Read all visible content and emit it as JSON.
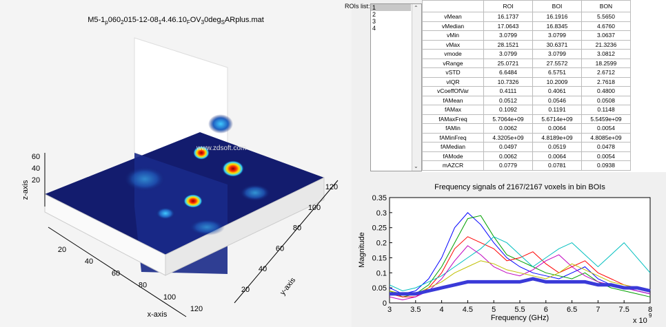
{
  "figure_3d": {
    "title_parts": [
      {
        "text": "M5-1"
      },
      {
        "text": "p",
        "sub": true
      },
      {
        "text": "060"
      },
      {
        "text": "2",
        "sub": true
      },
      {
        "text": "015-12-08"
      },
      {
        "text": "1",
        "sub": true
      },
      {
        "text": "4.46.10"
      },
      {
        "text": "F",
        "sub": true
      },
      {
        "text": "OV"
      },
      {
        "text": "3",
        "sub": true
      },
      {
        "text": "0deg"
      },
      {
        "text": "S",
        "sub": true
      },
      {
        "text": "ARplus.mat"
      }
    ],
    "xlabel": "x-axis",
    "ylabel": "y-axis",
    "zlabel": "z-axis",
    "xticks": [
      20,
      40,
      60,
      80,
      100,
      120
    ],
    "yticks": [
      20,
      40,
      60,
      80,
      100,
      120
    ],
    "zticks": [
      20,
      40,
      60
    ],
    "watermark": "www.zdsoft.com"
  },
  "rois_list": {
    "label": "ROIs list:",
    "items": [
      "1",
      "2",
      "3",
      "4"
    ]
  },
  "table": {
    "columns": [
      "ROI",
      "BOI",
      "BON"
    ],
    "rows": [
      [
        "vMean",
        "16.1737",
        "16.1916",
        "5.5650"
      ],
      [
        "vMedian",
        "17.0643",
        "16.8345",
        "4.6760"
      ],
      [
        "vMin",
        "3.0799",
        "3.0799",
        "3.0637"
      ],
      [
        "vMax",
        "28.1521",
        "30.6371",
        "21.3236"
      ],
      [
        "vmode",
        "3.0799",
        "3.0799",
        "3.0812"
      ],
      [
        "vRange",
        "25.0721",
        "27.5572",
        "18.2599"
      ],
      [
        "vSTD",
        "6.6484",
        "6.5751",
        "2.6712"
      ],
      [
        "vIQR",
        "10.7326",
        "10.2009",
        "2.7618"
      ],
      [
        "vCoeffOfVar",
        "0.4111",
        "0.4061",
        "0.4800"
      ],
      [
        "fAMean",
        "0.0512",
        "0.0546",
        "0.0508"
      ],
      [
        "fAMax",
        "0.1092",
        "0.1191",
        "0.1148"
      ],
      [
        "fAMaxFreq",
        "5.7064e+09",
        "5.6714e+09",
        "5.5459e+09"
      ],
      [
        "fAMin",
        "0.0062",
        "0.0064",
        "0.0054"
      ],
      [
        "fAMinFreq",
        "4.3205e+09",
        "4.8189e+09",
        "4.8085e+09"
      ],
      [
        "fAMedian",
        "0.0497",
        "0.0519",
        "0.0478"
      ],
      [
        "fAMode",
        "0.0062",
        "0.0064",
        "0.0054"
      ],
      [
        "mAZCR",
        "0.0779",
        "0.0781",
        "0.0938"
      ]
    ]
  },
  "chart_data": {
    "type": "line",
    "title": "Frequency signals of 2167/2167 voxels in bin BOIs",
    "xlabel": "Frequency (GHz)",
    "ylabel": "Magnitude",
    "x_multiplier": {
      "base": "x 10",
      "exponent": "9"
    },
    "x": [
      3,
      3.25,
      3.5,
      3.75,
      4,
      4.25,
      4.5,
      4.75,
      5,
      5.25,
      5.5,
      5.75,
      6,
      6.25,
      6.5,
      6.75,
      7,
      7.25,
      7.5,
      7.75,
      8
    ],
    "series": [
      {
        "color": "#0000ff",
        "width": 1,
        "values": [
          0.05,
          0.03,
          0.04,
          0.08,
          0.15,
          0.25,
          0.3,
          0.26,
          0.2,
          0.15,
          0.12,
          0.1,
          0.09,
          0.08,
          0.1,
          0.12,
          0.08,
          0.06,
          0.05,
          0.04,
          0.03
        ]
      },
      {
        "color": "#00a000",
        "width": 1,
        "values": [
          0.04,
          0.02,
          0.03,
          0.06,
          0.12,
          0.2,
          0.28,
          0.29,
          0.22,
          0.16,
          0.14,
          0.12,
          0.1,
          0.09,
          0.08,
          0.1,
          0.07,
          0.05,
          0.04,
          0.03,
          0.02
        ]
      },
      {
        "color": "#ff0000",
        "width": 1,
        "values": [
          0.03,
          0.02,
          0.02,
          0.05,
          0.1,
          0.18,
          0.22,
          0.2,
          0.18,
          0.14,
          0.15,
          0.17,
          0.13,
          0.1,
          0.12,
          0.14,
          0.1,
          0.08,
          0.06,
          0.05,
          0.04
        ]
      },
      {
        "color": "#00bfbf",
        "width": 1,
        "values": [
          0.06,
          0.04,
          0.05,
          0.07,
          0.09,
          0.12,
          0.15,
          0.18,
          0.22,
          0.2,
          0.16,
          0.12,
          0.15,
          0.18,
          0.2,
          0.16,
          0.12,
          0.16,
          0.2,
          0.15,
          0.1
        ]
      },
      {
        "color": "#bf00bf",
        "width": 1,
        "values": [
          0.02,
          0.01,
          0.02,
          0.04,
          0.08,
          0.14,
          0.19,
          0.16,
          0.12,
          0.1,
          0.09,
          0.11,
          0.14,
          0.16,
          0.12,
          0.09,
          0.07,
          0.06,
          0.05,
          0.04,
          0.03
        ]
      },
      {
        "color": "#bfbf00",
        "width": 1,
        "values": [
          0.04,
          0.03,
          0.03,
          0.05,
          0.07,
          0.1,
          0.12,
          0.14,
          0.13,
          0.11,
          0.1,
          0.09,
          0.08,
          0.1,
          0.13,
          0.11,
          0.09,
          0.07,
          0.06,
          0.05,
          0.04
        ]
      },
      {
        "color": "#3a3ad8",
        "width": 5,
        "values": [
          0.03,
          0.03,
          0.03,
          0.04,
          0.05,
          0.06,
          0.07,
          0.07,
          0.07,
          0.07,
          0.07,
          0.08,
          0.07,
          0.07,
          0.07,
          0.07,
          0.06,
          0.06,
          0.05,
          0.05,
          0.04
        ]
      }
    ],
    "xlim": [
      3,
      8
    ],
    "xticks": [
      3,
      3.5,
      4,
      4.5,
      5,
      5.5,
      6,
      6.5,
      7,
      7.5,
      8
    ],
    "ylim": [
      0,
      0.35
    ],
    "yticks": [
      0,
      0.05,
      0.1,
      0.15,
      0.2,
      0.25,
      0.3,
      0.35
    ]
  }
}
